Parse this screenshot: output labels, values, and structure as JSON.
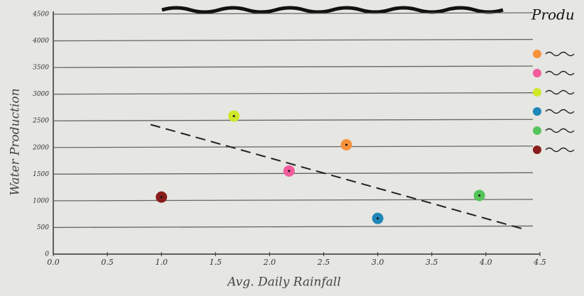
{
  "chart_data": {
    "type": "scatter",
    "x_label": "Avg. Daily Rainfall",
    "y_label": "Water Production",
    "legend_title": "Produ",
    "xlim": [
      0,
      4.5
    ],
    "xticks": [
      {
        "value": 0,
        "label": "0.0"
      },
      0.5,
      {
        "value": 1,
        "label": "1.0"
      },
      1.5,
      {
        "value": 2,
        "label": "2.0"
      },
      2.5,
      {
        "value": 3,
        "label": "3.0"
      },
      3.5,
      {
        "value": 4,
        "label": "4.0"
      },
      4.5
    ],
    "ylim": [
      0,
      4500
    ],
    "yticks": [
      0,
      500,
      1000,
      1500,
      2000,
      2500,
      3000,
      3500,
      4000,
      4500
    ],
    "grid": true,
    "series": [
      {
        "color": "#f7913a",
        "x": [
          2.71
        ],
        "values": [
          2050
        ]
      },
      {
        "color": "#f25c9c",
        "x": [
          2.18
        ],
        "values": [
          1560
        ]
      },
      {
        "color": "#cfe82a",
        "x": [
          1.67
        ],
        "values": [
          2590
        ]
      },
      {
        "color": "#1f86b8",
        "x": [
          3.0
        ],
        "values": [
          670
        ]
      },
      {
        "color": "#55c45a",
        "x": [
          3.94
        ],
        "values": [
          1100
        ]
      },
      {
        "color": "#8a1c1c",
        "x": [
          1.0
        ],
        "values": [
          1070
        ]
      }
    ],
    "trend_line": {
      "x": [
        0.9,
        4.33
      ],
      "y": [
        2430,
        480
      ]
    }
  }
}
